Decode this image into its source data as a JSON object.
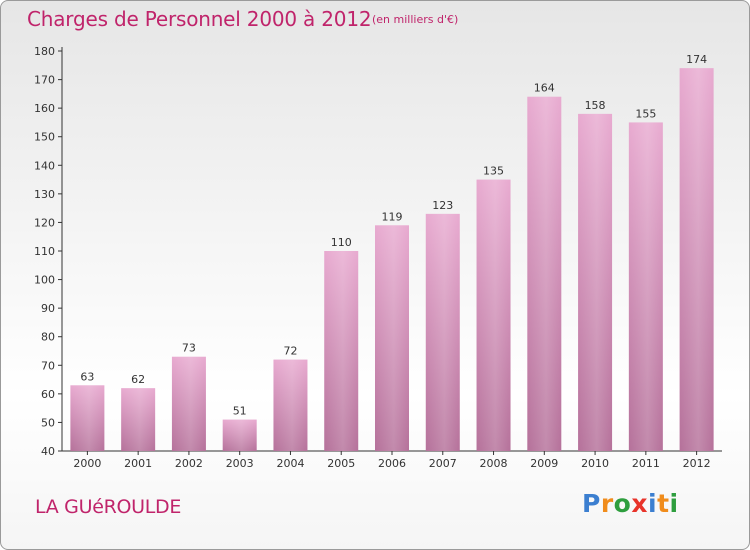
{
  "title": "Charges de Personnel 2000 à 2012",
  "subtitle": "(en milliers d'€)",
  "commune": "LA GUéROULDE",
  "brand": {
    "text": "Proxiti",
    "letter_colors": [
      "#3c7fd0",
      "#f08c1c",
      "#2e9e3e",
      "#e8332a",
      "#3c7fd0",
      "#f08c1c",
      "#2e9e3e"
    ]
  },
  "colors": {
    "bar_top": "#e8aad0",
    "bar_bottom": "#b5719a",
    "text": "#c0246b",
    "axis": "#333333"
  },
  "chart_data": {
    "type": "bar",
    "categories": [
      "2000",
      "2001",
      "2002",
      "2003",
      "2004",
      "2005",
      "2006",
      "2007",
      "2008",
      "2009",
      "2010",
      "2011",
      "2012"
    ],
    "values": [
      63,
      62,
      73,
      51,
      72,
      110,
      119,
      123,
      135,
      164,
      158,
      155,
      174
    ],
    "title": "Charges de Personnel 2000 à 2012",
    "subtitle": "(en milliers d'€)",
    "xlabel": "",
    "ylabel": "",
    "ylim": [
      40,
      180
    ],
    "yticks": [
      40,
      50,
      60,
      70,
      80,
      90,
      100,
      110,
      120,
      130,
      140,
      150,
      160,
      170,
      180
    ],
    "grid": false,
    "data_labels": true
  }
}
